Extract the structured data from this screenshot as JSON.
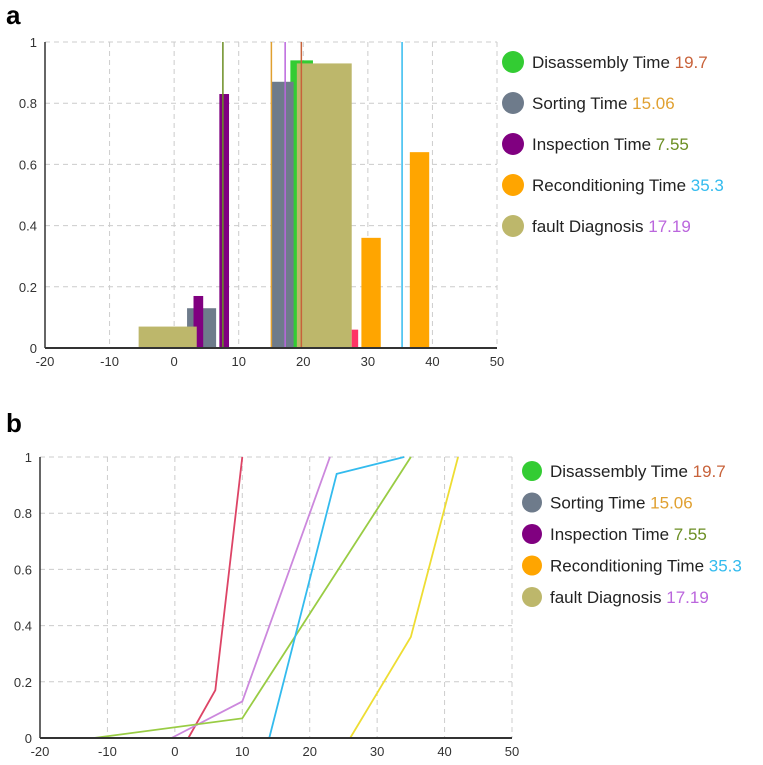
{
  "chart_data": [
    {
      "panel": "a",
      "type": "bar",
      "xlim": [
        -20,
        50
      ],
      "ylim": [
        0,
        1
      ],
      "x_ticks": [
        "-20",
        "-10",
        "0",
        "10",
        "20",
        "30",
        "40",
        "50"
      ],
      "y_ticks": [
        "0",
        "0.2",
        "0.4",
        "0.6",
        "0.8",
        "1"
      ],
      "grid": true,
      "legend_position": "right",
      "legend": [
        {
          "label": "Disassembly Time",
          "value": "19.7",
          "marker_color": "#33cc33",
          "value_color": "#c8623a"
        },
        {
          "label": "Sorting Time",
          "value": "15.06",
          "marker_color": "#6e7b8b",
          "value_color": "#e0a030"
        },
        {
          "label": "Inspection Time",
          "value": "7.55",
          "marker_color": "#800080",
          "value_color": "#6b8e23"
        },
        {
          "label": "Reconditioning Time",
          "value": "35.3",
          "marker_color": "#ffa500",
          "value_color": "#33bbee"
        },
        {
          "label": "fault Diagnosis",
          "value": "17.19",
          "marker_color": "#bdb76b",
          "value_color": "#bb66dd"
        }
      ],
      "series": [
        {
          "name": "Disassembly Time",
          "color": "#33cc33",
          "bars": [
            {
              "x0": 18,
              "x1": 21.5,
              "y": 0.94
            }
          ]
        },
        {
          "name": "Sorting Time",
          "color": "#6e7b8b",
          "bars": [
            {
              "x0": 2,
              "x1": 6.5,
              "y": 0.13
            },
            {
              "x0": 15,
              "x1": 18.5,
              "y": 0.87
            }
          ]
        },
        {
          "name": "Inspection Time",
          "color": "#800080",
          "bars": [
            {
              "x0": 3,
              "x1": 4.5,
              "y": 0.17
            },
            {
              "x0": 7,
              "x1": 8.5,
              "y": 0.83
            }
          ]
        },
        {
          "name": "Reconditioning Time",
          "color": "#ffa500",
          "bars": [
            {
              "x0": 29,
              "x1": 32,
              "y": 0.36
            },
            {
              "x0": 36.5,
              "x1": 39.5,
              "y": 0.64
            }
          ]
        },
        {
          "name": "fault Diagnosis",
          "color": "#bdb76b",
          "bars": [
            {
              "x0": -5.5,
              "x1": 3.5,
              "y": 0.07
            },
            {
              "x0": 19,
              "x1": 27.5,
              "y": 0.93
            }
          ]
        },
        {
          "color": "#ff3366",
          "bars": [
            {
              "x0": 27.5,
              "x1": 28.5,
              "y": 0.06
            }
          ]
        }
      ],
      "vlines": [
        {
          "x": 19.7,
          "color": "#c8623a"
        },
        {
          "x": 15.06,
          "color": "#e0a030"
        },
        {
          "x": 7.55,
          "color": "#6b8e23"
        },
        {
          "x": 35.3,
          "color": "#33bbee"
        },
        {
          "x": 17.19,
          "color": "#bb66dd"
        }
      ]
    },
    {
      "panel": "b",
      "type": "line",
      "xlim": [
        -20,
        50
      ],
      "ylim": [
        0,
        1
      ],
      "x_ticks": [
        "-20",
        "-10",
        "0",
        "10",
        "20",
        "30",
        "40",
        "50"
      ],
      "y_ticks": [
        "0",
        "0.2",
        "0.4",
        "0.6",
        "0.8",
        "1"
      ],
      "grid": true,
      "legend_position": "right",
      "legend": [
        {
          "label": "Disassembly Time",
          "value": "19.7",
          "marker_color": "#33cc33",
          "value_color": "#c8623a"
        },
        {
          "label": "Sorting Time",
          "value": "15.06",
          "marker_color": "#6e7b8b",
          "value_color": "#e0a030"
        },
        {
          "label": "Inspection Time",
          "value": "7.55",
          "marker_color": "#800080",
          "value_color": "#6b8e23"
        },
        {
          "label": "Reconditioning Time",
          "value": "35.3",
          "marker_color": "#ffa500",
          "value_color": "#33bbee"
        },
        {
          "label": "fault Diagnosis",
          "value": "17.19",
          "marker_color": "#bdb76b",
          "value_color": "#bb66dd"
        }
      ],
      "series": [
        {
          "color": "#dd4466",
          "x": [
            2,
            6,
            10
          ],
          "y": [
            0,
            0.17,
            1
          ]
        },
        {
          "color": "#cc88dd",
          "x": [
            -0.5,
            10,
            23
          ],
          "y": [
            0,
            0.13,
            1
          ]
        },
        {
          "color": "#99cc44",
          "x": [
            -12,
            10,
            35
          ],
          "y": [
            0,
            0.07,
            1
          ]
        },
        {
          "color": "#33bbee",
          "x": [
            14,
            24,
            34
          ],
          "y": [
            0,
            0.94,
            1
          ]
        },
        {
          "color": "#eedd33",
          "x": [
            26,
            35,
            42
          ],
          "y": [
            0,
            0.36,
            1
          ]
        }
      ]
    }
  ]
}
